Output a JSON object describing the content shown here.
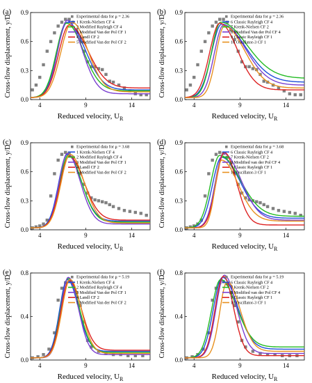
{
  "colors": {
    "experimental": "#808080",
    "series": [
      "#1f4fd8",
      "#22bb22",
      "#7a3fd1",
      "#dd2222",
      "#e8901e"
    ]
  },
  "chart_data": [
    {
      "type": "line",
      "panel_label": "(a)",
      "xlabel": "Reduced velocity, U",
      "xlabel_sub": "R",
      "ylabel": "Cross-flow displacement, y/D",
      "xlim": [
        3,
        16
      ],
      "ylim": [
        0,
        0.9
      ],
      "xticks": [
        "4",
        "9",
        "14"
      ],
      "yticks": [
        "0.0",
        "0.3",
        "0.6",
        "0.9"
      ],
      "legend": "top-right",
      "experimental": {
        "label": "Experimental data for μ = 2.36",
        "x": [
          3.2,
          3.6,
          4.0,
          4.4,
          4.8,
          5.2,
          5.6,
          6.0,
          6.4,
          6.8,
          7.2,
          7.6,
          8.0,
          8.4,
          8.8,
          9.2,
          9.6,
          10.0,
          10.4,
          10.8,
          11.2,
          11.6,
          12.0,
          12.6,
          13.2,
          13.8,
          14.4,
          15.0,
          15.6
        ],
        "y": [
          0.1,
          0.15,
          0.23,
          0.36,
          0.5,
          0.6,
          0.69,
          0.76,
          0.8,
          0.83,
          0.83,
          0.8,
          0.72,
          0.62,
          0.5,
          0.39,
          0.34,
          0.34,
          0.32,
          0.31,
          0.26,
          0.19,
          0.18,
          0.15,
          0.12,
          0.09,
          0.06,
          0.05,
          0.05
        ]
      },
      "series": [
        {
          "name": "1 Krenk-Nielsen  CF 4",
          "peak": 0.8,
          "xpeak": 7.0,
          "wl": 1.1,
          "wr": 1.9,
          "tail": 0.1,
          "base": 0.02
        },
        {
          "name": "2 Modified Rayleigh CF 4",
          "peak": 0.79,
          "xpeak": 6.9,
          "wl": 1.1,
          "wr": 1.8,
          "tail": 0.09,
          "base": 0.02
        },
        {
          "name": "3 Modified Van der Pol CF 1",
          "peak": 0.82,
          "xpeak": 7.0,
          "wl": 1.05,
          "wr": 1.6,
          "tail": 0.06,
          "base": 0.02
        },
        {
          "name": "4 Landl  CF 2",
          "peak": 0.77,
          "xpeak": 7.2,
          "wl": 1.15,
          "wr": 2.0,
          "tail": 0.12,
          "base": 0.02
        },
        {
          "name": "5 Modified Van der Pol CF 2",
          "peak": 0.8,
          "xpeak": 7.5,
          "wl": 1.2,
          "wr": 1.7,
          "tail": 0.08,
          "base": 0.02
        }
      ]
    },
    {
      "type": "line",
      "panel_label": "(b)",
      "xlabel": "Reduced velocity, U",
      "xlabel_sub": "R",
      "ylabel": "Cross-flow displacement, y/D",
      "xlim": [
        3,
        16
      ],
      "ylim": [
        0,
        0.9
      ],
      "xticks": [
        "4",
        "9",
        "14"
      ],
      "yticks": [
        "0.0",
        "0.3",
        "0.6",
        "0.9"
      ],
      "legend": "top-right",
      "experimental": {
        "label": "Experimental data for μ = 2.36",
        "x": [
          3.2,
          3.6,
          4.0,
          4.4,
          4.8,
          5.2,
          5.6,
          6.0,
          6.4,
          6.8,
          7.2,
          7.6,
          8.0,
          8.4,
          8.8,
          9.2,
          9.6,
          10.0,
          10.4,
          10.8,
          11.2,
          11.6,
          12.0,
          12.6,
          13.2,
          13.8,
          14.4,
          15.0,
          15.6
        ],
        "y": [
          0.1,
          0.15,
          0.23,
          0.36,
          0.5,
          0.6,
          0.69,
          0.76,
          0.8,
          0.83,
          0.83,
          0.8,
          0.72,
          0.62,
          0.5,
          0.39,
          0.34,
          0.34,
          0.32,
          0.31,
          0.26,
          0.19,
          0.18,
          0.15,
          0.12,
          0.09,
          0.06,
          0.05,
          0.05
        ]
      },
      "series": [
        {
          "name": "6 Classic Rayleigh CF 4",
          "peak": 0.78,
          "xpeak": 7.0,
          "wl": 1.1,
          "wr": 2.6,
          "tail": 0.18,
          "base": 0.02
        },
        {
          "name": "7 Krenk-Nielsen  CF 2",
          "peak": 0.8,
          "xpeak": 6.9,
          "wl": 1.0,
          "wr": 2.8,
          "tail": 0.22,
          "base": 0.02
        },
        {
          "name": "8 Modified Van der Pol CF 4",
          "peak": 0.77,
          "xpeak": 7.2,
          "wl": 1.0,
          "wr": 2.4,
          "tail": 0.15,
          "base": 0.02
        },
        {
          "name": "9 Classic Rayleigh  CF 1",
          "peak": 0.79,
          "xpeak": 6.8,
          "wl": 1.1,
          "wr": 1.9,
          "tail": 0.1,
          "base": 0.02
        },
        {
          "name": "10 Oscillator-3  CF 1",
          "peak": 0.76,
          "xpeak": 7.3,
          "wl": 0.9,
          "wr": 2.2,
          "tail": 0.12,
          "base": 0.02
        }
      ]
    },
    {
      "type": "line",
      "panel_label": "(c)",
      "xlabel": "Reduced velocity, U",
      "xlabel_sub": "R",
      "ylabel": "Cross-flow displacement, y/D",
      "xlim": [
        3,
        16
      ],
      "ylim": [
        0,
        0.9
      ],
      "xticks": [
        "4",
        "9",
        "14"
      ],
      "yticks": [
        "0.0",
        "0.3",
        "0.6",
        "0.9"
      ],
      "legend": "top-right",
      "experimental": {
        "label": "Experimental data for μ = 3.68",
        "x": [
          3.2,
          3.6,
          4.0,
          4.4,
          4.8,
          5.2,
          5.6,
          6.0,
          6.4,
          6.8,
          7.2,
          7.6,
          8.0,
          8.4,
          8.8,
          9.2,
          9.6,
          10.0,
          10.4,
          10.8,
          11.2,
          11.6,
          12.0,
          12.6,
          13.2,
          13.8,
          14.4,
          15.0,
          15.6
        ],
        "y": [
          0.02,
          0.03,
          0.04,
          0.06,
          0.1,
          0.35,
          0.58,
          0.72,
          0.78,
          0.8,
          0.79,
          0.75,
          0.68,
          0.58,
          0.47,
          0.38,
          0.33,
          0.31,
          0.3,
          0.29,
          0.28,
          0.26,
          0.24,
          0.22,
          0.2,
          0.19,
          0.18,
          0.17,
          0.15
        ]
      },
      "series": [
        {
          "name": "1 Krenk-Nielsen CF 4",
          "peak": 0.78,
          "xpeak": 7.0,
          "wl": 0.95,
          "wr": 1.5,
          "tail": 0.09,
          "base": 0.02
        },
        {
          "name": "2 Modified Rayleigh CF 4",
          "peak": 0.77,
          "xpeak": 7.1,
          "wl": 0.95,
          "wr": 1.45,
          "tail": 0.08,
          "base": 0.02
        },
        {
          "name": "3 Modified Van der Pol CF 1",
          "peak": 0.79,
          "xpeak": 7.0,
          "wl": 0.9,
          "wr": 1.4,
          "tail": 0.06,
          "base": 0.02
        },
        {
          "name": "4 Landl CF 2",
          "peak": 0.76,
          "xpeak": 7.2,
          "wl": 1.0,
          "wr": 1.6,
          "tail": 0.1,
          "base": 0.02
        },
        {
          "name": "5 Modified Van der Pol CF 2",
          "peak": 0.78,
          "xpeak": 7.3,
          "wl": 1.0,
          "wr": 1.5,
          "tail": 0.07,
          "base": 0.02
        }
      ]
    },
    {
      "type": "line",
      "panel_label": "(d)",
      "xlabel": "Reduced velocity, U",
      "xlabel_sub": "R",
      "ylabel": "Cross-flow displacement, y/D",
      "xlim": [
        3,
        16
      ],
      "ylim": [
        0,
        0.9
      ],
      "xticks": [
        "4",
        "9",
        "14"
      ],
      "yticks": [
        "0.0",
        "0.3",
        "0.6",
        "0.9"
      ],
      "legend": "top-right",
      "experimental": {
        "label": "Experimental data for μ = 3.68",
        "x": [
          3.2,
          3.6,
          4.0,
          4.4,
          4.8,
          5.2,
          5.6,
          6.0,
          6.4,
          6.8,
          7.2,
          7.6,
          8.0,
          8.4,
          8.8,
          9.2,
          9.6,
          10.0,
          10.4,
          10.8,
          11.2,
          11.6,
          12.0,
          12.6,
          13.2,
          13.8,
          14.4,
          15.0,
          15.6
        ],
        "y": [
          0.02,
          0.03,
          0.04,
          0.06,
          0.1,
          0.35,
          0.58,
          0.72,
          0.78,
          0.8,
          0.79,
          0.75,
          0.68,
          0.58,
          0.47,
          0.38,
          0.33,
          0.31,
          0.3,
          0.29,
          0.28,
          0.26,
          0.24,
          0.22,
          0.2,
          0.19,
          0.18,
          0.17,
          0.15
        ]
      },
      "series": [
        {
          "name": "6 Classic Rayleigh CF 4",
          "peak": 0.75,
          "xpeak": 7.0,
          "wl": 1.0,
          "wr": 2.0,
          "tail": 0.12,
          "base": 0.02
        },
        {
          "name": "7 Krenk-Nielsen CF 2",
          "peak": 0.77,
          "xpeak": 6.8,
          "wl": 1.0,
          "wr": 2.2,
          "tail": 0.14,
          "base": 0.02
        },
        {
          "name": "8 Modified van der Pol CF 4",
          "peak": 0.79,
          "xpeak": 7.2,
          "wl": 0.9,
          "wr": 1.9,
          "tail": 0.1,
          "base": 0.02
        },
        {
          "name": "9 Classic Rayleigh CF 1",
          "peak": 0.8,
          "xpeak": 7.3,
          "wl": 0.9,
          "wr": 1.3,
          "tail": 0.05,
          "base": 0.02
        },
        {
          "name": "10 Oscillator-3 CF 1",
          "peak": 0.72,
          "xpeak": 7.0,
          "wl": 0.7,
          "wr": 1.8,
          "tail": 0.09,
          "base": 0.02
        }
      ]
    },
    {
      "type": "line",
      "panel_label": "(e)",
      "xlabel": "Reduced velocity, U",
      "xlabel_sub": "R",
      "ylabel": "Cross-flow displacement, y/D",
      "xlim": [
        3,
        16
      ],
      "ylim": [
        0,
        0.8
      ],
      "xticks": [
        "4",
        "9",
        "14"
      ],
      "yticks": [
        "0.0",
        "0.4",
        "0.8"
      ],
      "legend": "top-right",
      "experimental": {
        "label": "Experimental data for μ = 5.19",
        "x": [
          3.2,
          3.8,
          4.4,
          5.0,
          5.6,
          6.0,
          6.4,
          6.8,
          7.2,
          7.6,
          8.0,
          8.4,
          8.8,
          9.2,
          9.6,
          10.4,
          11.2,
          12.0,
          12.8,
          13.6,
          14.4,
          15.2
        ],
        "y": [
          0.02,
          0.03,
          0.05,
          0.1,
          0.25,
          0.55,
          0.66,
          0.71,
          0.72,
          0.7,
          0.62,
          0.5,
          0.35,
          0.18,
          0.12,
          0.08,
          0.06,
          0.05,
          0.05,
          0.04,
          0.04,
          0.04
        ]
      },
      "series": [
        {
          "name": "1 Krenk-Nielsen CF 4",
          "peak": 0.74,
          "xpeak": 7.0,
          "wl": 0.85,
          "wr": 1.2,
          "tail": 0.08,
          "base": 0.02
        },
        {
          "name": "2 Modified Rayleigh CF 4",
          "peak": 0.75,
          "xpeak": 7.1,
          "wl": 0.85,
          "wr": 1.2,
          "tail": 0.07,
          "base": 0.02
        },
        {
          "name": "3 Modified Van der Pol CF 1",
          "peak": 0.76,
          "xpeak": 7.1,
          "wl": 0.8,
          "wr": 1.1,
          "tail": 0.05,
          "base": 0.02
        },
        {
          "name": "4 Landl CF 2",
          "peak": 0.73,
          "xpeak": 7.2,
          "wl": 0.9,
          "wr": 1.3,
          "tail": 0.09,
          "base": 0.02
        },
        {
          "name": "5 Modified Van der Pol CF 2",
          "peak": 0.74,
          "xpeak": 7.3,
          "wl": 0.9,
          "wr": 1.2,
          "tail": 0.06,
          "base": 0.02
        }
      ]
    },
    {
      "type": "line",
      "panel_label": "(f)",
      "xlabel": "Reduced velocity, U",
      "xlabel_sub": "R",
      "ylabel": "Cross-flow displacement, y/D",
      "xlim": [
        3,
        16
      ],
      "ylim": [
        0,
        0.8
      ],
      "xticks": [
        "4",
        "9",
        "14"
      ],
      "yticks": [
        "0.0",
        "0.4",
        "0.8"
      ],
      "legend": "top-right",
      "experimental": {
        "label": "Experimental data for μ = 5.19",
        "x": [
          3.2,
          3.8,
          4.4,
          5.0,
          5.6,
          6.0,
          6.4,
          6.8,
          7.2,
          7.6,
          8.0,
          8.4,
          8.8,
          9.2,
          9.6,
          10.4,
          11.2,
          12.0,
          12.8,
          13.6,
          14.4,
          15.2
        ],
        "y": [
          0.02,
          0.03,
          0.05,
          0.1,
          0.25,
          0.55,
          0.66,
          0.71,
          0.72,
          0.7,
          0.62,
          0.5,
          0.35,
          0.18,
          0.12,
          0.08,
          0.06,
          0.05,
          0.05,
          0.04,
          0.04,
          0.04
        ]
      },
      "series": [
        {
          "name": "6 Classic Rayleigh CF 4",
          "peak": 0.76,
          "xpeak": 7.1,
          "wl": 1.0,
          "wr": 1.6,
          "tail": 0.1,
          "base": 0.02
        },
        {
          "name": "7 Krenk-Nielsen CF 2",
          "peak": 0.74,
          "xpeak": 6.9,
          "wl": 1.0,
          "wr": 1.7,
          "tail": 0.12,
          "base": 0.02
        },
        {
          "name": "8 Modified van der Pol CF 4",
          "peak": 0.78,
          "xpeak": 7.3,
          "wl": 0.9,
          "wr": 1.3,
          "tail": 0.06,
          "base": 0.02
        },
        {
          "name": "9 Classic Rayleigh CF 1",
          "peak": 0.77,
          "xpeak": 7.2,
          "wl": 0.9,
          "wr": 1.1,
          "tail": 0.04,
          "base": 0.02
        },
        {
          "name": "10 Oscillator-3 CF 1",
          "peak": 0.72,
          "xpeak": 7.6,
          "wl": 0.8,
          "wr": 1.4,
          "tail": 0.08,
          "base": 0.02
        }
      ]
    }
  ]
}
